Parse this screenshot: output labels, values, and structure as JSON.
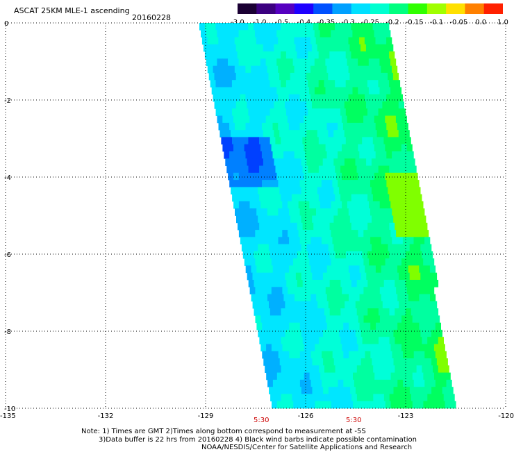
{
  "title": "ASCAT 25KM MLE-1 ascending",
  "date": "20160228",
  "colorbar": {
    "labels": [
      "-3.0",
      "-1.0",
      "-0.5",
      "-0.4",
      "-0.35",
      "-0.3",
      "-0.25",
      "-0.2",
      "-0.15",
      "-0.1",
      "-0.05",
      "0.0",
      "1.0"
    ],
    "colors": [
      "#1a0033",
      "#3b0080",
      "#5500c0",
      "#1e00ff",
      "#0050ff",
      "#00a0ff",
      "#00e0ff",
      "#00ffd0",
      "#00ff80",
      "#30ff00",
      "#a0ff00",
      "#ffe000",
      "#ff8000",
      "#ff2000"
    ]
  },
  "axes": {
    "x_ticks": [
      "-135",
      "-132",
      "-129",
      "-126",
      "-123",
      "-120"
    ],
    "y_ticks": [
      "0",
      "-2",
      "-4",
      "-6",
      "-8",
      "-10"
    ],
    "x_range": [
      -135,
      -120
    ],
    "y_range": [
      0,
      -10
    ]
  },
  "times": [
    "5:30",
    "5:30"
  ],
  "notes": {
    "line1": "Note: 1) Times are GMT 2)Times along bottom correspond to measurement at -5S",
    "line2": "3)Data buffer is 22 hrs from 20160228 4) Black wind barbs indicate possible contamination",
    "line3": "NOAA/NESDIS/Center for Satellite Applications and Research"
  }
}
